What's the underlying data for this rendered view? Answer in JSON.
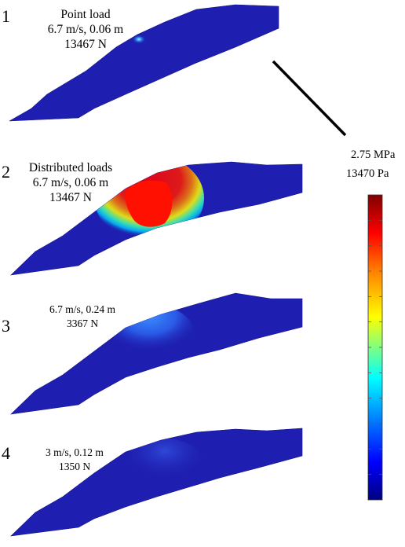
{
  "panels": [
    {
      "number": "1",
      "caption": [
        "Point load",
        "6.7 m/s, 0.06 m",
        "13467 N"
      ]
    },
    {
      "number": "2",
      "caption": [
        "Distributed loads",
        "6.7 m/s, 0.06 m",
        "13467 N"
      ]
    },
    {
      "number": "3",
      "caption": [
        "6.7 m/s, 0.24 m",
        "3367 N"
      ]
    },
    {
      "number": "4",
      "caption": [
        "3 m/s, 0.12 m",
        "1350 N"
      ]
    }
  ],
  "colorbar": {
    "max_label": "2.75 MPa",
    "min_label": "13470 Pa",
    "colormap": [
      "#00007f",
      "#0000ff",
      "#00a0ff",
      "#00ffff",
      "#80ff80",
      "#ffff00",
      "#ff8000",
      "#ff0000",
      "#7f0000"
    ]
  },
  "colors": {
    "base_blue": "#1e1eb0",
    "pointer_line": "#000000"
  }
}
